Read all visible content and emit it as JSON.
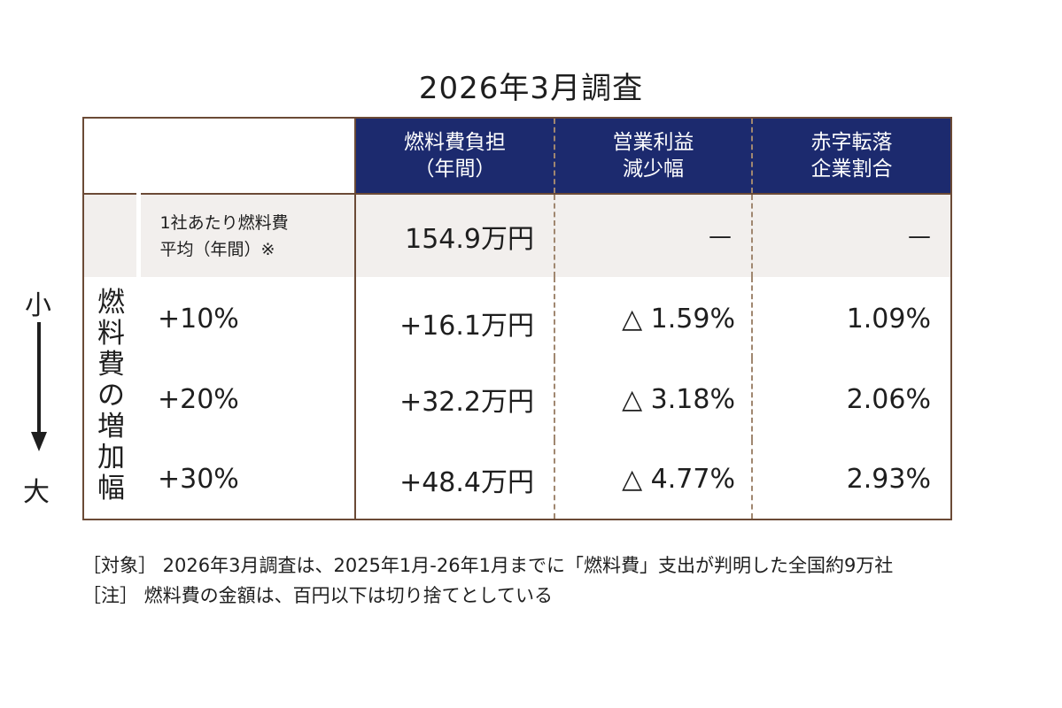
{
  "title": "2026年3月調査",
  "side": {
    "small": "小",
    "large": "大"
  },
  "headers": {
    "burden": [
      "燃料費負担",
      "（年間）"
    ],
    "profit": [
      "営業利益",
      "減少幅"
    ],
    "deficit": [
      "赤字転落",
      "企業割合"
    ]
  },
  "average": {
    "label": [
      "1社あたり燃料費",
      "平均（年間）※"
    ],
    "burden": "154.9万円",
    "profit": "—",
    "deficit": "—"
  },
  "increase_label": [
    "燃",
    "料",
    "費",
    "の",
    "増",
    "加",
    "幅"
  ],
  "rows": [
    {
      "increase": "+10%",
      "burden": "+16.1万円",
      "profit": "△ 1.59%",
      "deficit": "1.09%"
    },
    {
      "increase": "+20%",
      "burden": "+32.2万円",
      "profit": "△ 3.18%",
      "deficit": "2.06%"
    },
    {
      "increase": "+30%",
      "burden": "+48.4万円",
      "profit": "△ 4.77%",
      "deficit": "2.93%"
    }
  ],
  "notes": [
    "［対象］ 2026年3月調査は、2025年1月-26年1月までに「燃料費」支出が判明した全国約9万社",
    "［注］ 燃料費の金額は、百円以下は切り捨てとしている"
  ],
  "colors": {
    "header_bg": "#1c2a6e",
    "border": "#6b4a36",
    "avg_bg": "#f2efed"
  }
}
